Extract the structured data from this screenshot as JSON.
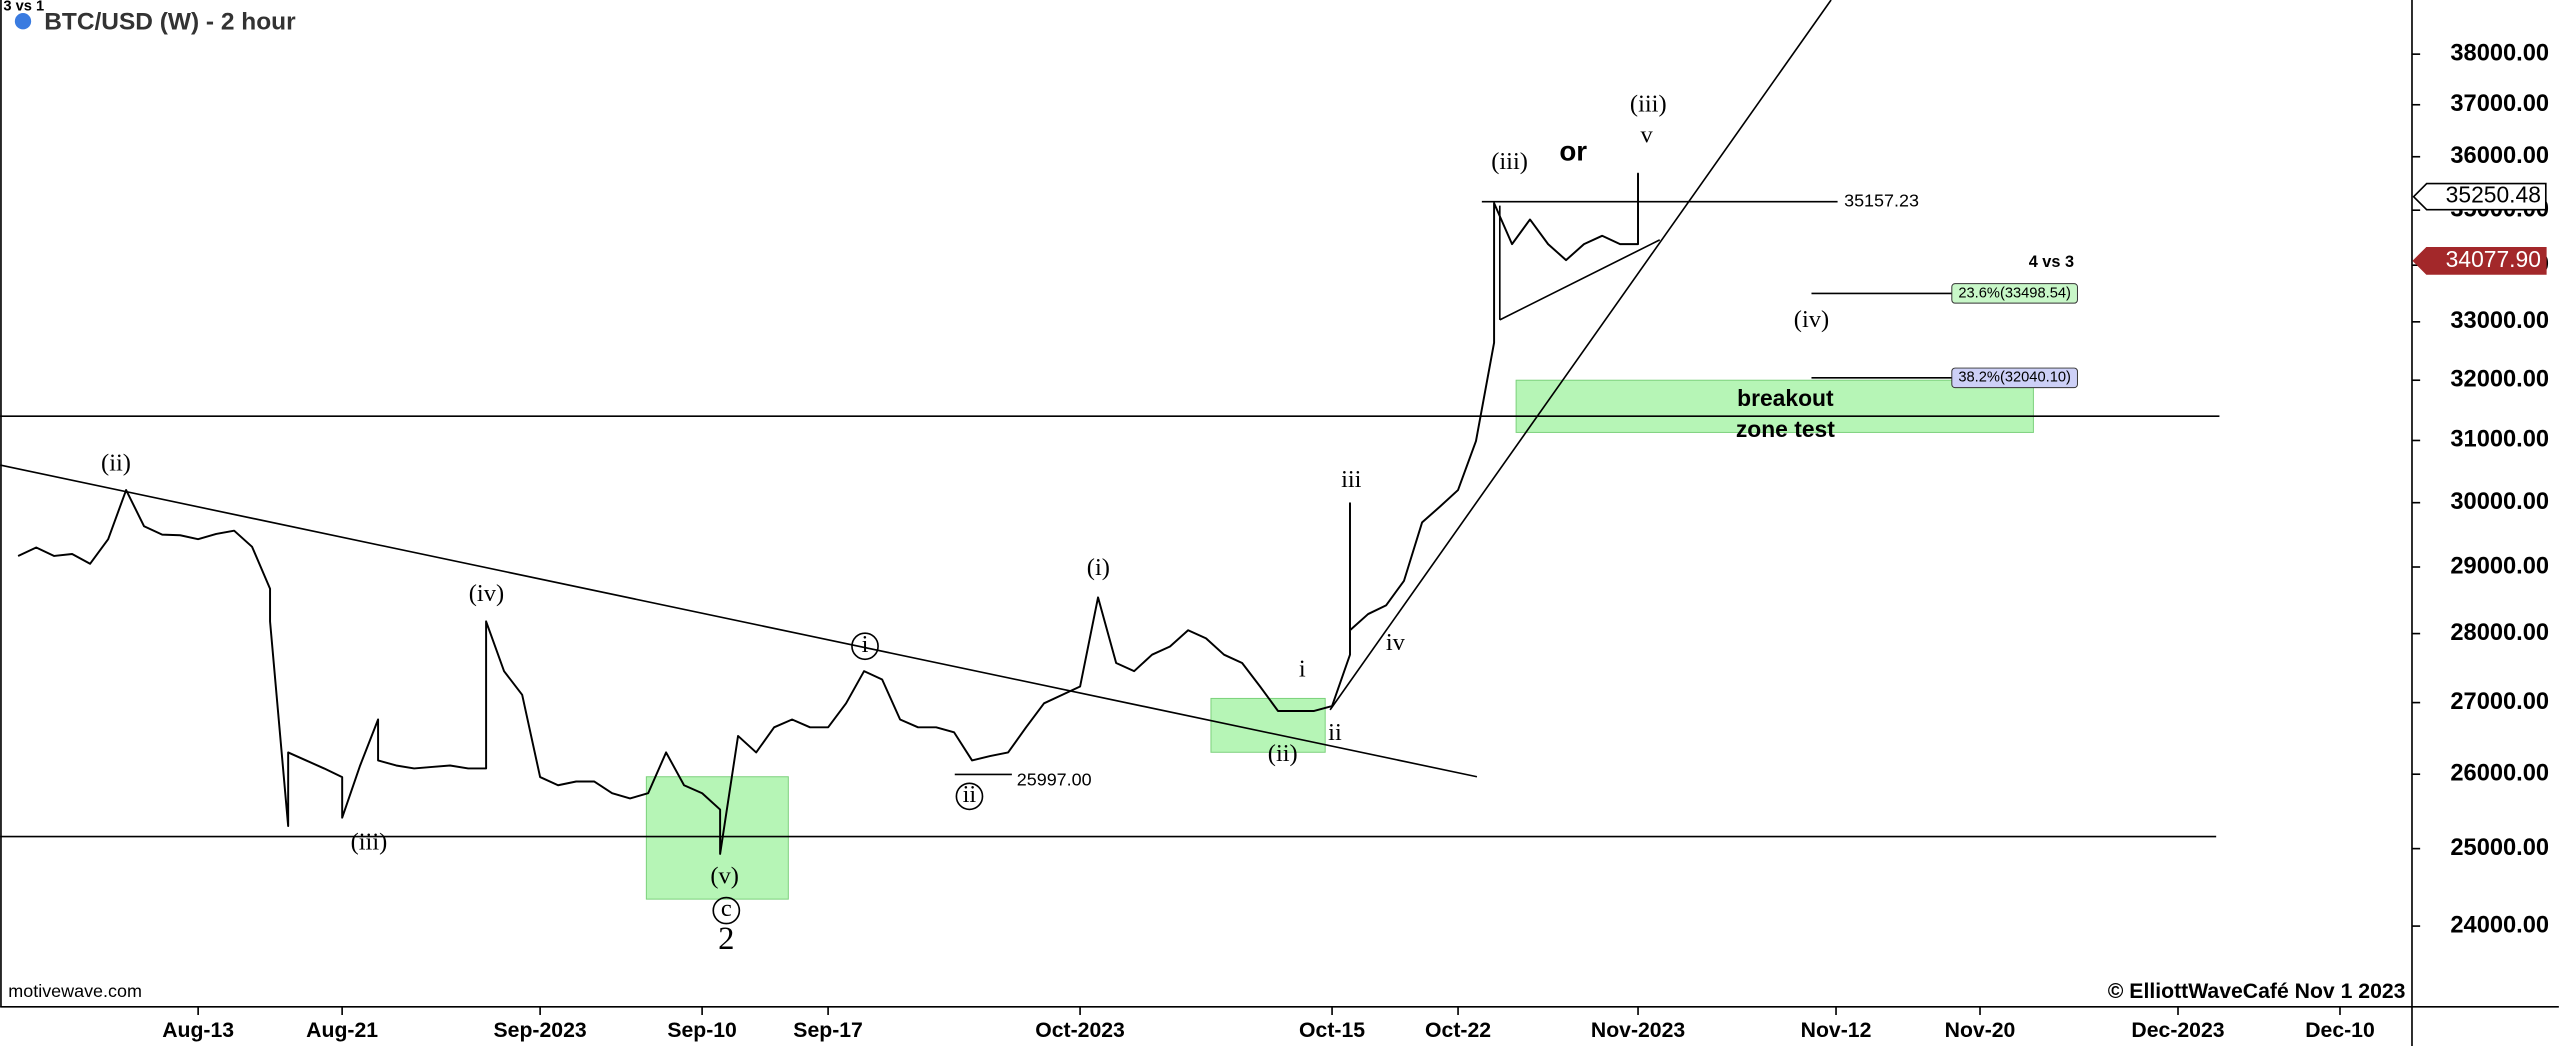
{
  "chart_data": {
    "type": "line",
    "title": "BTC/USD (W) - 2 hour",
    "log_scale": true,
    "color": "#000000",
    "xlim": [
      "2023-08-02",
      "2023-12-14"
    ],
    "ylim": [
      23000,
      39100
    ],
    "xticks": [
      {
        "value": "2023-08-13",
        "label": "Aug-13"
      },
      {
        "value": "2023-08-21",
        "label": "Aug-21"
      },
      {
        "value": "2023-09-01",
        "label": "Sep-2023"
      },
      {
        "value": "2023-09-10",
        "label": "Sep-10"
      },
      {
        "value": "2023-09-17",
        "label": "Sep-17"
      },
      {
        "value": "2023-10-01",
        "label": "Oct-2023"
      },
      {
        "value": "2023-10-15",
        "label": "Oct-15"
      },
      {
        "value": "2023-10-22",
        "label": "Oct-22"
      },
      {
        "value": "2023-11-01",
        "label": "Nov-2023"
      },
      {
        "value": "2023-11-12",
        "label": "Nov-12"
      },
      {
        "value": "2023-11-20",
        "label": "Nov-20"
      },
      {
        "value": "2023-12-01",
        "label": "Dec-2023"
      },
      {
        "value": "2023-12-10",
        "label": "Dec-10"
      }
    ],
    "yticks": [
      {
        "value": 24000,
        "label": "24000.00"
      },
      {
        "value": 25000,
        "label": "25000.00"
      },
      {
        "value": 26000,
        "label": "26000.00"
      },
      {
        "value": 27000,
        "label": "27000.00"
      },
      {
        "value": 28000,
        "label": "28000.00"
      },
      {
        "value": 29000,
        "label": "29000.00"
      },
      {
        "value": 30000,
        "label": "30000.00"
      },
      {
        "value": 31000,
        "label": "31000.00"
      },
      {
        "value": 32000,
        "label": "32000.00"
      },
      {
        "value": 33000,
        "label": "33000.00"
      },
      {
        "value": 34000,
        "label": "34000.00"
      },
      {
        "value": 35000,
        "label": "35000.00"
      },
      {
        "value": 36000,
        "label": "36000.00"
      },
      {
        "value": 37000,
        "label": "37000.00"
      },
      {
        "value": 38000,
        "label": "38000.00"
      }
    ],
    "x": [
      "2023-08-03",
      "2023-08-04",
      "2023-08-05",
      "2023-08-06",
      "2023-08-07",
      "2023-08-08",
      "2023-08-09",
      "2023-08-10",
      "2023-08-11",
      "2023-08-12",
      "2023-08-13",
      "2023-08-14",
      "2023-08-15",
      "2023-08-16",
      "2023-08-17",
      "2023-08-17",
      "2023-08-18",
      "2023-08-18",
      "2023-08-19",
      "2023-08-20",
      "2023-08-21",
      "2023-08-21",
      "2023-08-22",
      "2023-08-23",
      "2023-08-23",
      "2023-08-24",
      "2023-08-25",
      "2023-08-26",
      "2023-08-27",
      "2023-08-28",
      "2023-08-29",
      "2023-08-29",
      "2023-08-30",
      "2023-08-31",
      "2023-09-01",
      "2023-09-02",
      "2023-09-03",
      "2023-09-04",
      "2023-09-05",
      "2023-09-06",
      "2023-09-07",
      "2023-09-08",
      "2023-09-09",
      "2023-09-10",
      "2023-09-11",
      "2023-09-11",
      "2023-09-12",
      "2023-09-13",
      "2023-09-14",
      "2023-09-15",
      "2023-09-16",
      "2023-09-17",
      "2023-09-18",
      "2023-09-19",
      "2023-09-20",
      "2023-09-21",
      "2023-09-22",
      "2023-09-23",
      "2023-09-24",
      "2023-09-25",
      "2023-09-26",
      "2023-09-27",
      "2023-09-28",
      "2023-09-29",
      "2023-09-30",
      "2023-10-01",
      "2023-10-02",
      "2023-10-03",
      "2023-10-04",
      "2023-10-05",
      "2023-10-06",
      "2023-10-07",
      "2023-10-08",
      "2023-10-09",
      "2023-10-10",
      "2023-10-11",
      "2023-10-12",
      "2023-10-13",
      "2023-10-14",
      "2023-10-15",
      "2023-10-16",
      "2023-10-16",
      "2023-10-16",
      "2023-10-17",
      "2023-10-18",
      "2023-10-19",
      "2023-10-20",
      "2023-10-21",
      "2023-10-22",
      "2023-10-23",
      "2023-10-24",
      "2023-10-24",
      "2023-10-25",
      "2023-10-26",
      "2023-10-27",
      "2023-10-28",
      "2023-10-29",
      "2023-10-30",
      "2023-10-31",
      "2023-11-01",
      "2023-11-01",
      "2023-11-01"
    ],
    "values": [
      29170,
      29300,
      29170,
      29200,
      29050,
      29430,
      30200,
      29630,
      29500,
      29490,
      29430,
      29510,
      29560,
      29310,
      28670,
      28180,
      25300,
      26300,
      26190,
      26080,
      25960,
      25410,
      26120,
      26760,
      26190,
      26120,
      26080,
      26100,
      26120,
      26080,
      26080,
      28180,
      27450,
      27110,
      25960,
      25850,
      25900,
      25900,
      25740,
      25670,
      25740,
      26300,
      25850,
      25740,
      25520,
      24930,
      26530,
      26300,
      26650,
      26760,
      26650,
      26650,
      26990,
      27450,
      27330,
      26760,
      26650,
      26650,
      26580,
      26190,
      26250,
      26300,
      26650,
      26990,
      27110,
      27230,
      28540,
      27570,
      27450,
      27690,
      27810,
      28050,
      27930,
      27690,
      27570,
      27230,
      26880,
      26880,
      26880,
      26950,
      27690,
      29990,
      28050,
      28290,
      28420,
      28790,
      29690,
      29940,
      30200,
      30990,
      32640,
      35130,
      34380,
      34830,
      34380,
      34090,
      34380,
      34530,
      34380,
      34380,
      35680,
      35130
    ],
    "support_lines": [
      31400,
      25160
    ],
    "levels": [
      {
        "value": 35157.23
      },
      {
        "value": 25997,
        "label": "25997.00"
      }
    ],
    "fib_levels": [
      {
        "value": 33498.54,
        "label": "23.6%(33498.54)",
        "color": "#c8f7c8"
      },
      {
        "value": 32040.1,
        "label": "38.2%(32040.10)",
        "color": "#cdd0f7"
      }
    ],
    "price_markers": [
      {
        "value": 35250.48,
        "label": "35250.48",
        "color": "#ffffff"
      },
      {
        "value": 34077.9,
        "label": "34077.90",
        "color": "#a3282a"
      }
    ],
    "annotations": [
      "3 vs 1",
      "(ii)",
      "(iii)",
      "(iv)",
      "(v)",
      "c",
      "2",
      "i",
      "ii",
      "(i)",
      "(ii)",
      "i",
      "ii",
      "iii",
      "iv",
      "(iii)",
      "(iii)",
      "v",
      "(iv)",
      "or",
      "4 vs 3",
      "breakout",
      "zone test"
    ],
    "source": "motivewave.com",
    "copyright": "© ElliottWaveCafé Nov 1 2023"
  }
}
